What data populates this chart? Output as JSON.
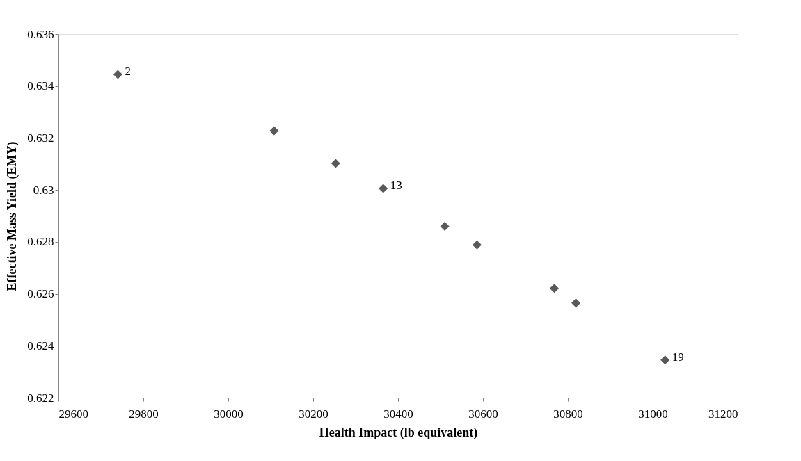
{
  "chart_data": {
    "type": "scatter",
    "xlabel": "Health Impact (lb equivalent)",
    "ylabel": "Effective Mass Yield (EMY)",
    "x": [
      29740,
      30108,
      30253,
      30365,
      30510,
      30586,
      30768,
      30819,
      31029
    ],
    "values": [
      0.63445,
      0.63228,
      0.63102,
      0.63006,
      0.6286,
      0.62788,
      0.62621,
      0.62565,
      0.62345
    ],
    "annotations": [
      {
        "text": "2",
        "x": 29740,
        "y": 0.63445
      },
      {
        "text": "13",
        "x": 30365,
        "y": 0.63006
      },
      {
        "text": "19",
        "x": 31029,
        "y": 0.62345
      }
    ],
    "color": "#595959",
    "marker": "diamond",
    "xlim": [
      29600,
      31200
    ],
    "xticks": [
      29600,
      29800,
      30000,
      30200,
      30400,
      30600,
      30800,
      31000,
      31200
    ],
    "ylim": [
      0.622,
      0.636
    ],
    "yticks": [
      0.622,
      0.624,
      0.626,
      0.628,
      0.63,
      0.632,
      0.634,
      0.636
    ],
    "grid": false
  }
}
